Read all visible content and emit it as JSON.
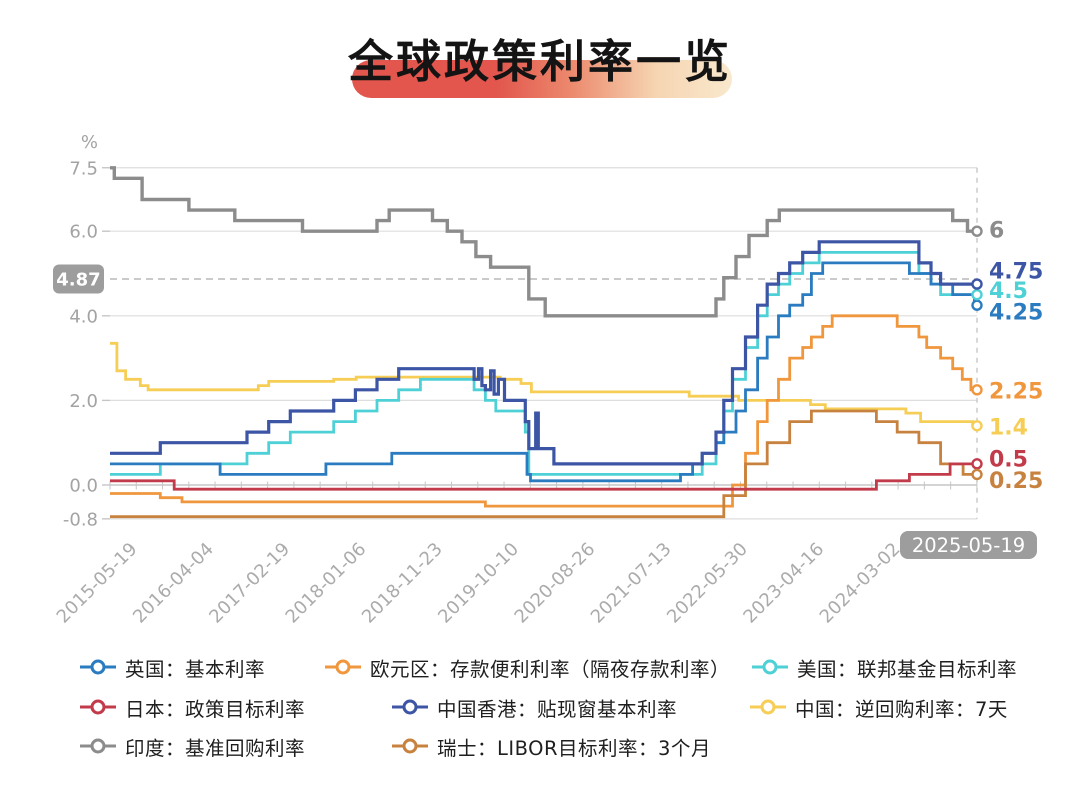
{
  "title": "全球政策利率一览",
  "theme": {
    "pill_gradient_start": "#e2564d",
    "pill_gradient_end": "#f9e8cd",
    "badge_gray": "#9d9d9d",
    "axis_text_gray": "#a3a3a3",
    "grid_light": "#dedede",
    "grid_axis": "#c6c6c6"
  },
  "y_axis": {
    "unit": "%",
    "ticks": [
      {
        "label": "7.5",
        "value": 7.5
      },
      {
        "label": "6.0",
        "value": 6.0
      },
      {
        "label": "4.0",
        "value": 4.0
      },
      {
        "label": "2.0",
        "value": 2.0
      },
      {
        "label": "0.0",
        "value": 0.0
      },
      {
        "label": "-0.8",
        "value": -0.8
      }
    ],
    "highlight": {
      "label": "4.87",
      "value": 4.87
    }
  },
  "x_axis": {
    "labels": [
      "2015-05-19",
      "2016-04-04",
      "2017-02-19",
      "2018-01-06",
      "2018-11-23",
      "2019-10-10",
      "2020-08-26",
      "2021-07-13",
      "2022-05-30",
      "2023-04-16",
      "2024-03-02"
    ],
    "end_badge": "2025-05-19"
  },
  "chart_data": {
    "type": "line",
    "step": true,
    "x_range": [
      2015.38,
      2025.38
    ],
    "y_range": [
      -0.8,
      7.5
    ],
    "grid": "horizontal",
    "legend_position": "bottom",
    "highlight_value": 4.87,
    "series": [
      {
        "id": "uk",
        "name": "英国：基本利率",
        "color": "#2a7bc0",
        "width": 2.8,
        "end_label": "4.25",
        "label_dy": 7,
        "points": [
          [
            2015.38,
            0.5
          ],
          [
            2016.65,
            0.25
          ],
          [
            2017.87,
            0.5
          ],
          [
            2018.63,
            0.75
          ],
          [
            2020.19,
            0.25
          ],
          [
            2020.23,
            0.1
          ],
          [
            2021.96,
            0.25
          ],
          [
            2022.1,
            0.5
          ],
          [
            2022.21,
            0.75
          ],
          [
            2022.37,
            1.0
          ],
          [
            2022.46,
            1.25
          ],
          [
            2022.6,
            1.75
          ],
          [
            2022.71,
            2.25
          ],
          [
            2022.85,
            3.0
          ],
          [
            2022.96,
            3.5
          ],
          [
            2023.09,
            4.0
          ],
          [
            2023.22,
            4.25
          ],
          [
            2023.37,
            4.5
          ],
          [
            2023.47,
            5.0
          ],
          [
            2023.6,
            5.25
          ],
          [
            2024.6,
            5.0
          ],
          [
            2024.85,
            4.75
          ],
          [
            2025.1,
            4.5
          ],
          [
            2025.35,
            4.25
          ]
        ]
      },
      {
        "id": "eurozone",
        "name": "欧元区：存款便利利率（隔夜存款利率）",
        "color": "#f0973e",
        "width": 2.8,
        "end_label": "2.25",
        "label_dy": 1,
        "points": [
          [
            2015.38,
            -0.2
          ],
          [
            2015.96,
            -0.3
          ],
          [
            2016.21,
            -0.4
          ],
          [
            2019.71,
            -0.5
          ],
          [
            2022.56,
            0.0
          ],
          [
            2022.71,
            0.75
          ],
          [
            2022.85,
            1.5
          ],
          [
            2022.96,
            2.0
          ],
          [
            2023.09,
            2.5
          ],
          [
            2023.22,
            3.0
          ],
          [
            2023.37,
            3.25
          ],
          [
            2023.47,
            3.5
          ],
          [
            2023.6,
            3.75
          ],
          [
            2023.71,
            4.0
          ],
          [
            2024.46,
            3.75
          ],
          [
            2024.71,
            3.5
          ],
          [
            2024.8,
            3.25
          ],
          [
            2024.96,
            3.0
          ],
          [
            2025.1,
            2.75
          ],
          [
            2025.21,
            2.5
          ],
          [
            2025.31,
            2.25
          ]
        ]
      },
      {
        "id": "us",
        "name": "美国：联邦基金目标利率",
        "color": "#4ed1d6",
        "width": 2.8,
        "end_label": "4.5",
        "label_dy": -4,
        "points": [
          [
            2015.38,
            0.25
          ],
          [
            2015.96,
            0.5
          ],
          [
            2016.96,
            0.75
          ],
          [
            2017.21,
            1.0
          ],
          [
            2017.46,
            1.25
          ],
          [
            2017.96,
            1.5
          ],
          [
            2018.21,
            1.75
          ],
          [
            2018.46,
            2.0
          ],
          [
            2018.71,
            2.25
          ],
          [
            2018.96,
            2.5
          ],
          [
            2019.58,
            2.25
          ],
          [
            2019.71,
            2.0
          ],
          [
            2019.83,
            1.75
          ],
          [
            2020.17,
            1.25
          ],
          [
            2020.21,
            0.25
          ],
          [
            2022.21,
            0.5
          ],
          [
            2022.37,
            1.0
          ],
          [
            2022.46,
            1.75
          ],
          [
            2022.56,
            2.5
          ],
          [
            2022.71,
            3.25
          ],
          [
            2022.85,
            4.0
          ],
          [
            2022.96,
            4.5
          ],
          [
            2023.09,
            4.75
          ],
          [
            2023.22,
            5.0
          ],
          [
            2023.37,
            5.25
          ],
          [
            2023.56,
            5.5
          ],
          [
            2024.71,
            5.0
          ],
          [
            2024.85,
            4.75
          ],
          [
            2024.96,
            4.5
          ]
        ]
      },
      {
        "id": "japan",
        "name": "日本：政策目标利率",
        "color": "#c23b4b",
        "width": 2.8,
        "end_label": "0.5",
        "label_dy": -5,
        "points": [
          [
            2015.38,
            0.1
          ],
          [
            2016.12,
            -0.1
          ],
          [
            2024.22,
            0.1
          ],
          [
            2024.6,
            0.25
          ],
          [
            2025.07,
            0.5
          ]
        ]
      },
      {
        "id": "hongkong",
        "name": "中国香港：贴现窗基本利率",
        "color": "#3c55a5",
        "width": 3.2,
        "end_label": "4.75",
        "label_dy": -13,
        "points": [
          [
            2015.38,
            0.75
          ],
          [
            2015.96,
            1.0
          ],
          [
            2016.96,
            1.25
          ],
          [
            2017.21,
            1.5
          ],
          [
            2017.46,
            1.75
          ],
          [
            2017.96,
            2.0
          ],
          [
            2018.21,
            2.25
          ],
          [
            2018.46,
            2.5
          ],
          [
            2018.71,
            2.75
          ],
          [
            2019.58,
            2.5
          ],
          [
            2019.63,
            2.75
          ],
          [
            2019.67,
            2.35
          ],
          [
            2019.71,
            2.25
          ],
          [
            2019.77,
            2.7
          ],
          [
            2019.81,
            2.15
          ],
          [
            2019.86,
            2.5
          ],
          [
            2019.93,
            2.0
          ],
          [
            2020.17,
            1.5
          ],
          [
            2020.21,
            0.86
          ],
          [
            2020.29,
            1.7
          ],
          [
            2020.32,
            0.86
          ],
          [
            2020.5,
            0.5
          ],
          [
            2022.21,
            0.75
          ],
          [
            2022.37,
            1.25
          ],
          [
            2022.46,
            2.0
          ],
          [
            2022.56,
            2.75
          ],
          [
            2022.71,
            3.5
          ],
          [
            2022.85,
            4.25
          ],
          [
            2022.96,
            4.75
          ],
          [
            2023.09,
            5.0
          ],
          [
            2023.22,
            5.25
          ],
          [
            2023.37,
            5.5
          ],
          [
            2023.56,
            5.75
          ],
          [
            2024.71,
            5.25
          ],
          [
            2024.85,
            5.0
          ],
          [
            2024.96,
            4.75
          ]
        ]
      },
      {
        "id": "china",
        "name": "中国：逆回购利率：7天",
        "color": "#f6cd55",
        "width": 2.8,
        "end_label": "1.4",
        "label_dy": 1,
        "points": [
          [
            2015.38,
            3.35
          ],
          [
            2015.46,
            2.7
          ],
          [
            2015.56,
            2.5
          ],
          [
            2015.73,
            2.35
          ],
          [
            2015.82,
            2.25
          ],
          [
            2017.09,
            2.35
          ],
          [
            2017.21,
            2.45
          ],
          [
            2017.96,
            2.5
          ],
          [
            2018.22,
            2.55
          ],
          [
            2019.88,
            2.5
          ],
          [
            2020.12,
            2.4
          ],
          [
            2020.24,
            2.2
          ],
          [
            2022.06,
            2.1
          ],
          [
            2022.63,
            2.0
          ],
          [
            2023.46,
            1.9
          ],
          [
            2023.63,
            1.8
          ],
          [
            2024.56,
            1.7
          ],
          [
            2024.73,
            1.5
          ],
          [
            2025.33,
            1.4
          ]
        ]
      },
      {
        "id": "india",
        "name": "印度：基准回购利率",
        "color": "#8c8c8c",
        "width": 3.4,
        "end_label": "6",
        "label_dy": -1,
        "points": [
          [
            2015.38,
            7.5
          ],
          [
            2015.43,
            7.25
          ],
          [
            2015.75,
            6.75
          ],
          [
            2016.29,
            6.5
          ],
          [
            2016.82,
            6.25
          ],
          [
            2017.6,
            6.0
          ],
          [
            2018.46,
            6.25
          ],
          [
            2018.6,
            6.5
          ],
          [
            2019.1,
            6.25
          ],
          [
            2019.27,
            6.0
          ],
          [
            2019.44,
            5.75
          ],
          [
            2019.6,
            5.4
          ],
          [
            2019.77,
            5.15
          ],
          [
            2020.21,
            4.4
          ],
          [
            2020.4,
            4.0
          ],
          [
            2022.37,
            4.4
          ],
          [
            2022.46,
            4.9
          ],
          [
            2022.6,
            5.4
          ],
          [
            2022.75,
            5.9
          ],
          [
            2022.96,
            6.25
          ],
          [
            2023.1,
            6.5
          ],
          [
            2025.1,
            6.25
          ],
          [
            2025.27,
            6.0
          ]
        ]
      },
      {
        "id": "switzerland",
        "name": "瑞士：LIBOR目标利率：3个月",
        "color": "#c8823f",
        "width": 2.8,
        "end_label": "0.25",
        "label_dy": 6,
        "points": [
          [
            2015.38,
            -0.75
          ],
          [
            2022.46,
            -0.25
          ],
          [
            2022.71,
            0.5
          ],
          [
            2022.96,
            1.0
          ],
          [
            2023.22,
            1.5
          ],
          [
            2023.47,
            1.75
          ],
          [
            2024.22,
            1.5
          ],
          [
            2024.46,
            1.25
          ],
          [
            2024.71,
            1.0
          ],
          [
            2024.96,
            0.5
          ],
          [
            2025.22,
            0.25
          ]
        ]
      }
    ],
    "draw_order": [
      6,
      5,
      1,
      7,
      3,
      2,
      0,
      4
    ]
  },
  "legend": {
    "rows": [
      [
        0,
        1,
        2
      ],
      [
        3,
        4,
        5
      ],
      [
        6,
        7
      ]
    ],
    "row_tops": [
      652,
      692,
      731
    ],
    "offsets": [
      [
        80,
        325,
        752
      ],
      [
        80,
        392,
        750
      ],
      [
        80,
        392
      ]
    ]
  }
}
